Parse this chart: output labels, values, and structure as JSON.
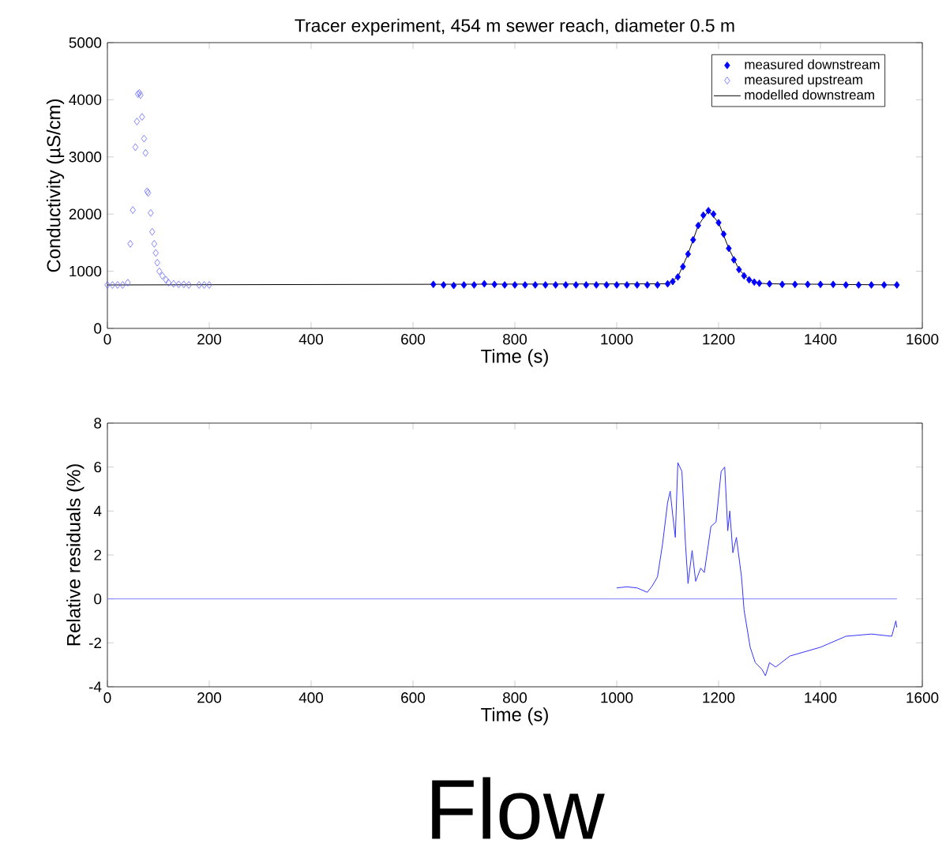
{
  "chart_data": [
    {
      "type": "scatter",
      "title": "Tracer experiment, 454 m sewer reach, diameter 0.5 m",
      "xlabel": "Time (s)",
      "ylabel": "Conductivity (µS/cm)",
      "xlim": [
        0,
        1600
      ],
      "ylim": [
        0,
        5000
      ],
      "xticks": [
        0,
        200,
        400,
        600,
        800,
        1000,
        1200,
        1400,
        1600
      ],
      "yticks": [
        0,
        1000,
        2000,
        3000,
        4000,
        5000
      ],
      "marker": "diamond",
      "legend": "top right",
      "series": [
        {
          "name": "measured downstream",
          "color": "#0000ff",
          "x": [
            640,
            660,
            680,
            700,
            720,
            740,
            760,
            780,
            800,
            820,
            840,
            860,
            880,
            900,
            920,
            940,
            960,
            980,
            1000,
            1020,
            1040,
            1060,
            1080,
            1100,
            1110,
            1120,
            1130,
            1140,
            1150,
            1160,
            1170,
            1180,
            1190,
            1200,
            1210,
            1220,
            1230,
            1240,
            1250,
            1260,
            1270,
            1280,
            1300,
            1325,
            1350,
            1375,
            1400,
            1425,
            1450,
            1475,
            1500,
            1525,
            1550
          ],
          "values": [
            770,
            760,
            750,
            760,
            760,
            780,
            770,
            760,
            760,
            760,
            760,
            760,
            760,
            760,
            760,
            760,
            760,
            760,
            760,
            760,
            760,
            760,
            760,
            780,
            820,
            900,
            1080,
            1300,
            1550,
            1800,
            1980,
            2060,
            2000,
            1850,
            1650,
            1400,
            1200,
            1030,
            920,
            850,
            810,
            790,
            780,
            770,
            770,
            770,
            770,
            770,
            760,
            760,
            760,
            760,
            760
          ]
        },
        {
          "name": "measured upstream",
          "color": "#6666ff",
          "x": [
            0,
            10,
            20,
            30,
            40,
            45,
            50,
            55,
            58,
            60,
            63,
            65,
            68,
            72,
            75,
            78,
            80,
            85,
            88,
            92,
            95,
            98,
            102,
            108,
            115,
            120,
            130,
            140,
            150,
            160,
            180,
            190,
            200
          ],
          "values": [
            760,
            760,
            760,
            760,
            800,
            1480,
            2070,
            3170,
            3620,
            4100,
            4120,
            4080,
            3700,
            3320,
            3070,
            2400,
            2370,
            2020,
            1690,
            1480,
            1320,
            1150,
            1000,
            920,
            850,
            800,
            780,
            770,
            770,
            760,
            760,
            760,
            760
          ]
        },
        {
          "name": "modelled downstream",
          "type": "line",
          "marker": "none",
          "color": "#000000",
          "x": [
            0,
            1100,
            1120,
            1140,
            1160,
            1180,
            1200,
            1220,
            1240,
            1260,
            1280,
            1300,
            1550
          ],
          "values": [
            760,
            780,
            900,
            1300,
            1800,
            2060,
            1850,
            1400,
            1030,
            850,
            790,
            780,
            760
          ]
        }
      ]
    },
    {
      "type": "line",
      "xlabel": "Time (s)",
      "ylabel": "Relative residuals (%)",
      "xlim": [
        0,
        1600
      ],
      "ylim": [
        -4,
        8
      ],
      "xticks": [
        0,
        200,
        400,
        600,
        800,
        1000,
        1200,
        1400,
        1600
      ],
      "yticks": [
        -4,
        -2,
        0,
        2,
        4,
        6,
        8
      ],
      "annotations": [
        "Flow"
      ],
      "series": [
        {
          "color": "#8080ff",
          "x": [
            0,
            1550
          ],
          "values": [
            0,
            0
          ]
        },
        {
          "color": "#3333ff",
          "x": [
            1000,
            1020,
            1040,
            1060,
            1070,
            1080,
            1090,
            1100,
            1105,
            1110,
            1115,
            1120,
            1128,
            1135,
            1140,
            1148,
            1155,
            1165,
            1172,
            1185,
            1195,
            1205,
            1212,
            1218,
            1222,
            1228,
            1235,
            1245,
            1250,
            1262,
            1272,
            1285,
            1292,
            1300,
            1312,
            1340,
            1400,
            1450,
            1500,
            1540,
            1548,
            1550
          ],
          "values": [
            0.5,
            0.55,
            0.5,
            0.3,
            0.6,
            1.0,
            2.5,
            4.4,
            4.9,
            3.8,
            2.8,
            6.2,
            5.8,
            2.5,
            0.7,
            2.2,
            0.8,
            1.4,
            1.2,
            3.3,
            3.5,
            5.8,
            6.0,
            3.1,
            4.0,
            2.1,
            2.8,
            1.0,
            -0.5,
            -2.2,
            -2.9,
            -3.2,
            -3.5,
            -2.9,
            -3.1,
            -2.6,
            -2.2,
            -1.7,
            -1.6,
            -1.7,
            -1.0,
            -1.3
          ]
        }
      ]
    }
  ]
}
